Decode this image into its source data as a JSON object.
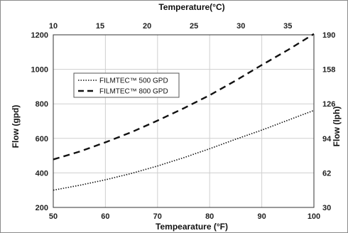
{
  "chart_data": {
    "type": "line",
    "title": "",
    "xlabel": "Tempearature (°F)",
    "ylabel": "Flow (gpd)",
    "x2label": "Temperature(°C)",
    "y2label": "Flow (lph)",
    "xlim": [
      50,
      100
    ],
    "ylim": [
      200,
      1200
    ],
    "x_ticks": [
      50,
      60,
      70,
      80,
      90,
      100
    ],
    "y_ticks": [
      200,
      400,
      600,
      800,
      1000,
      1200
    ],
    "x2_ticks": [
      10,
      15,
      20,
      25,
      30,
      35
    ],
    "y2_ticks": [
      30,
      62,
      94,
      126,
      158,
      190
    ],
    "grid": true,
    "legend_position": "upper-left",
    "x": [
      50,
      55,
      60,
      65,
      70,
      75,
      80,
      85,
      90,
      95,
      100
    ],
    "series": [
      {
        "name": "FILMTEC™ 500 GPD",
        "style": "dotted",
        "values": [
          300,
          328,
          360,
          397,
          440,
          488,
          540,
          595,
          648,
          705,
          762
        ]
      },
      {
        "name": "FILMTEC™ 800 GPD",
        "style": "dashed",
        "values": [
          478,
          523,
          577,
          636,
          703,
          774,
          850,
          935,
          1025,
          1112,
          1205
        ]
      }
    ]
  }
}
